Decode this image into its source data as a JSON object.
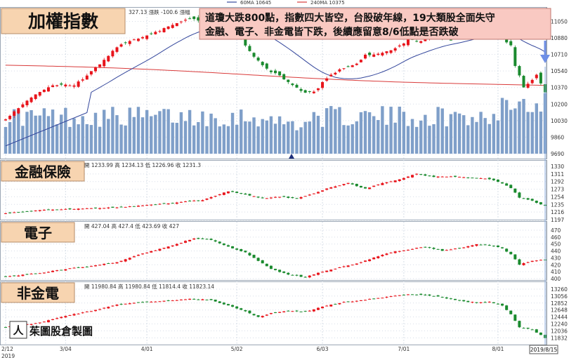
{
  "legend": {
    "ma60": "60MA 10645",
    "ma240": "240MA 10375"
  },
  "colors": {
    "up": "#e8141b",
    "down": "#1a8a2e",
    "vol": "#7f9fc9",
    "ma60": "#34479c",
    "ma240": "#d93a3a",
    "grid": "#d7dee8",
    "title_bg": "#f7d4b0",
    "note_bg": "#f9c9c2",
    "arrow": "#6f8fe6"
  },
  "annotation": {
    "line1": "道瓊大跌800點，指數四大皆空，台股破年線，19大類股全面失守",
    "line2": "金融、電子、非金電皆下跌，後續應留意8/6低點是否跌破"
  },
  "watermark": "茱圖股倉製圖",
  "date_end": "2019/8/15",
  "x_axis": {
    "labels": [
      "2/12\n2019",
      "3/04",
      "4/01",
      "5/02",
      "6/03",
      "7/01",
      "8/01"
    ],
    "sessions": 127
  },
  "chart_data": [
    {
      "type": "candlestick",
      "title": "加權指數",
      "header": "327.13  漲跌 -100.6  漲幅",
      "y_ticks": [
        11050,
        10880,
        10710,
        10540,
        10370,
        10200,
        10030,
        9860,
        9690
      ],
      "ylim": [
        9690,
        11140
      ],
      "series": [
        {
          "name": "60MA 10645",
          "role": "ma60"
        },
        {
          "name": "240MA 10375",
          "role": "ma240"
        }
      ],
      "keypoints": [
        [
          0,
          10050
        ],
        [
          6,
          10270
        ],
        [
          11,
          10400
        ],
        [
          16,
          10390
        ],
        [
          21,
          10570
        ],
        [
          26,
          10790
        ],
        [
          31,
          10880
        ],
        [
          35,
          10940
        ],
        [
          39,
          11010
        ],
        [
          43,
          11080
        ],
        [
          47,
          11040
        ],
        [
          51,
          10990
        ],
        [
          55,
          10870
        ],
        [
          58,
          10680
        ],
        [
          61,
          10560
        ],
        [
          64,
          10490
        ],
        [
          67,
          10390
        ],
        [
          70,
          10320
        ],
        [
          72,
          10320
        ],
        [
          75,
          10470
        ],
        [
          78,
          10560
        ],
        [
          82,
          10620
        ],
        [
          84,
          10700
        ],
        [
          87,
          10720
        ],
        [
          91,
          10770
        ],
        [
          94,
          10860
        ],
        [
          97,
          10850
        ],
        [
          100,
          10900
        ],
        [
          104,
          10860
        ],
        [
          107,
          10930
        ],
        [
          110,
          10970
        ],
        [
          113,
          10940
        ],
        [
          116,
          10880
        ],
        [
          118,
          10800
        ],
        [
          119,
          10600
        ],
        [
          121,
          10380
        ],
        [
          123,
          10440
        ],
        [
          124,
          10500
        ],
        [
          125,
          10420
        ],
        [
          126,
          10327
        ]
      ]
    },
    {
      "type": "candlestick",
      "title": "金融保險",
      "header": "開 1233.99 高 1234.13 低 1226.96 收 1231.3",
      "y_ticks": [
        1330,
        1311,
        1292,
        1273,
        1254,
        1235,
        1216,
        1197
      ],
      "ylim": [
        1197,
        1330
      ],
      "keypoints": [
        [
          0,
          1213
        ],
        [
          10,
          1222
        ],
        [
          20,
          1225
        ],
        [
          30,
          1230
        ],
        [
          38,
          1238
        ],
        [
          46,
          1246
        ],
        [
          52,
          1268
        ],
        [
          55,
          1262
        ],
        [
          60,
          1250
        ],
        [
          64,
          1254
        ],
        [
          68,
          1250
        ],
        [
          72,
          1262
        ],
        [
          76,
          1278
        ],
        [
          80,
          1288
        ],
        [
          84,
          1274
        ],
        [
          88,
          1288
        ],
        [
          92,
          1298
        ],
        [
          96,
          1311
        ],
        [
          100,
          1304
        ],
        [
          104,
          1305
        ],
        [
          108,
          1302
        ],
        [
          112,
          1300
        ],
        [
          115,
          1292
        ],
        [
          118,
          1276
        ],
        [
          120,
          1252
        ],
        [
          123,
          1244
        ],
        [
          126,
          1231
        ]
      ]
    },
    {
      "type": "candlestick",
      "title": "電子",
      "header": "開 427.04 高 427.4 低 423.69 收 427",
      "y_ticks": [
        470,
        460,
        450,
        440,
        430,
        420,
        410,
        400
      ],
      "ylim": [
        398,
        472
      ],
      "keypoints": [
        [
          0,
          403
        ],
        [
          8,
          408
        ],
        [
          14,
          414
        ],
        [
          20,
          418
        ],
        [
          26,
          424
        ],
        [
          32,
          436
        ],
        [
          38,
          446
        ],
        [
          44,
          458
        ],
        [
          48,
          456
        ],
        [
          52,
          446
        ],
        [
          56,
          438
        ],
        [
          59,
          426
        ],
        [
          62,
          414
        ],
        [
          66,
          406
        ],
        [
          70,
          402
        ],
        [
          74,
          410
        ],
        [
          78,
          416
        ],
        [
          82,
          422
        ],
        [
          86,
          430
        ],
        [
          90,
          438
        ],
        [
          94,
          442
        ],
        [
          98,
          446
        ],
        [
          102,
          440
        ],
        [
          106,
          444
        ],
        [
          110,
          450
        ],
        [
          113,
          448
        ],
        [
          116,
          444
        ],
        [
          118,
          435
        ],
        [
          120,
          420
        ],
        [
          123,
          426
        ],
        [
          126,
          427
        ]
      ]
    },
    {
      "type": "candlestick",
      "title": "非金電",
      "header": "開 11980.84 高 11980.84 低 11814.4 收 11823.14",
      "y_ticks": [
        13260,
        13056,
        12852,
        12648,
        12444,
        12240,
        12036,
        11832
      ],
      "ylim": [
        11780,
        13300
      ],
      "keypoints": [
        [
          0,
          12150
        ],
        [
          8,
          12280
        ],
        [
          14,
          12480
        ],
        [
          20,
          12620
        ],
        [
          26,
          12800
        ],
        [
          32,
          12880
        ],
        [
          38,
          12920
        ],
        [
          43,
          12980
        ],
        [
          48,
          12940
        ],
        [
          52,
          12780
        ],
        [
          56,
          12620
        ],
        [
          59,
          12440
        ],
        [
          62,
          12560
        ],
        [
          66,
          12620
        ],
        [
          70,
          12600
        ],
        [
          74,
          12740
        ],
        [
          78,
          12860
        ],
        [
          82,
          12920
        ],
        [
          86,
          12980
        ],
        [
          90,
          13050
        ],
        [
          94,
          13100
        ],
        [
          98,
          13080
        ],
        [
          102,
          13020
        ],
        [
          106,
          12920
        ],
        [
          110,
          12860
        ],
        [
          113,
          12880
        ],
        [
          116,
          12780
        ],
        [
          118,
          12520
        ],
        [
          120,
          12140
        ],
        [
          123,
          12080
        ],
        [
          126,
          11823
        ]
      ]
    }
  ]
}
